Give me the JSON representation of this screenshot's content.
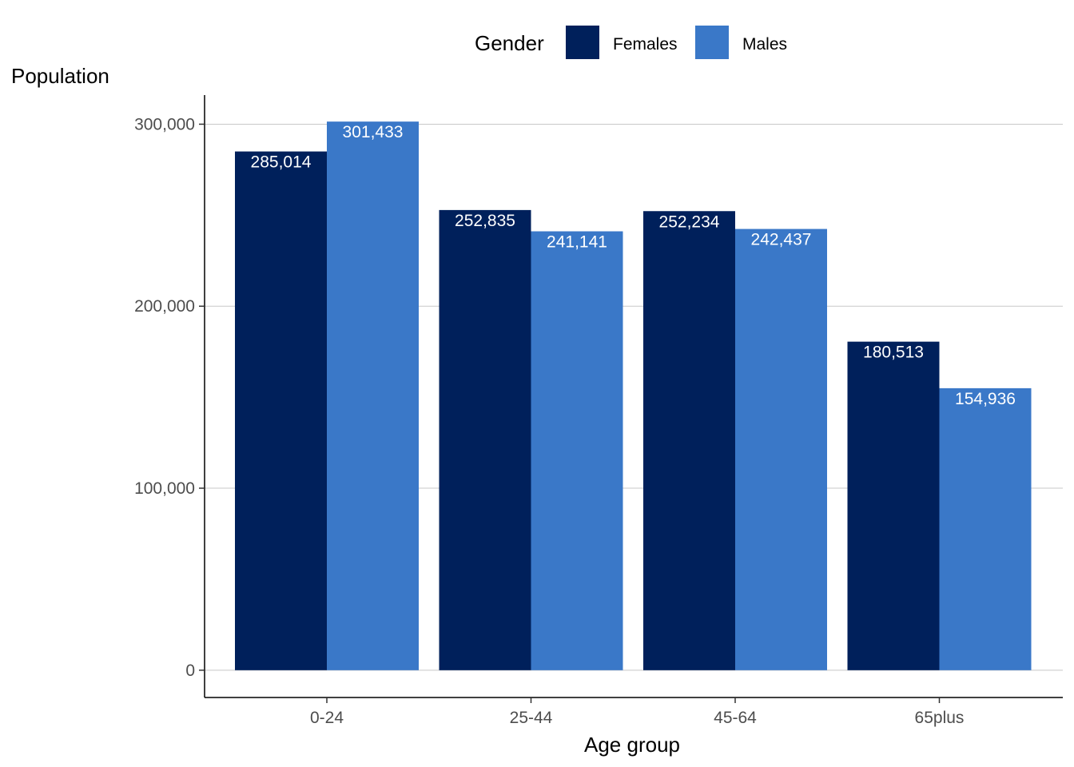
{
  "chart_data": {
    "type": "bar",
    "categories": [
      "0-24",
      "25-44",
      "45-64",
      "65plus"
    ],
    "series": [
      {
        "name": "Females",
        "color": "#00205b",
        "values": [
          285014,
          252835,
          252234,
          180513
        ],
        "labels": [
          "285,014",
          "252,835",
          "252,234",
          "180,513"
        ]
      },
      {
        "name": "Males",
        "color": "#3a78c8",
        "values": [
          301433,
          241141,
          242437,
          154936
        ],
        "labels": [
          "301,433",
          "241,141",
          "242,437",
          "154,936"
        ]
      }
    ],
    "xlabel": "Age group",
    "ylabel": "Population",
    "ylim": [
      -15000,
      316000
    ],
    "yticks": [
      0,
      100000,
      200000,
      300000
    ],
    "ytick_labels": [
      "0",
      "100,000",
      "200,000",
      "300,000"
    ],
    "grid": "horizontal",
    "legend": {
      "title": "Gender",
      "position": "top"
    }
  }
}
